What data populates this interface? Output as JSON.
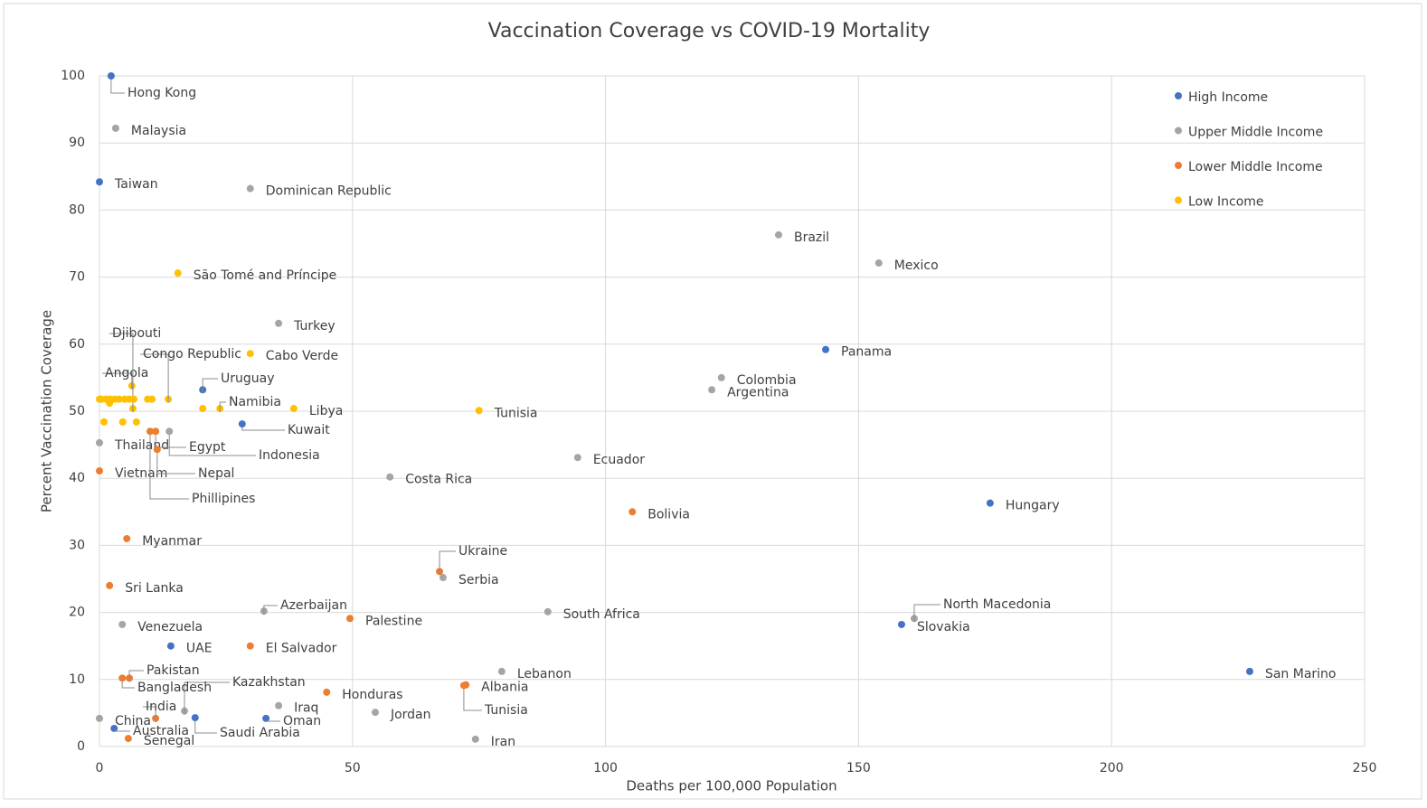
{
  "chart_data": {
    "type": "scatter",
    "title": "Vaccination Coverage vs COVID-19 Mortality",
    "x_label": "Deaths per 100,000 Population",
    "y_label": "Percent Vaccination Coverage",
    "xlim": [
      0,
      250
    ],
    "xticks": [
      0,
      50,
      100,
      150,
      200,
      250
    ],
    "ylim": [
      0,
      100
    ],
    "yticks": [
      0,
      10,
      20,
      30,
      40,
      50,
      60,
      70,
      80,
      90,
      100
    ],
    "grid": true,
    "legend": "upper right",
    "series": [
      {
        "name": "High Income",
        "color": "#4472c4",
        "x": [
          2.3,
          0,
          20.4,
          28.2,
          143.5,
          176,
          158.5,
          227.3,
          14.1,
          18.9,
          2.9,
          32.9
        ],
        "values": [
          100,
          84.2,
          53.2,
          48.1,
          59.2,
          36.3,
          18.2,
          11.2,
          15.0,
          4.3,
          2.7,
          4.2
        ],
        "labels": [
          "Hong Kong",
          "Taiwan",
          "Uruguay",
          "Kuwait",
          "Panama",
          "Hungary",
          "Slovakia",
          "San Marino",
          "UAE",
          "Saudi Arabia",
          "Australia",
          "Oman"
        ]
      },
      {
        "name": "Upper Middle Income",
        "color": "#a5a5a5",
        "x": [
          3.2,
          29.8,
          134.2,
          154,
          35.4,
          122.9,
          121,
          0,
          13.8,
          94.5,
          57.4,
          67.9,
          88.6,
          32.5,
          161,
          4.5,
          79.5,
          16.8,
          35.4,
          54.5,
          74.3,
          0
        ],
        "values": [
          92.2,
          83.2,
          76.3,
          72.1,
          63.1,
          55.0,
          53.2,
          45.3,
          47.0,
          43.1,
          40.2,
          25.2,
          20.1,
          20.2,
          19.1,
          18.2,
          11.2,
          5.3,
          6.1,
          5.1,
          1.1,
          4.2
        ],
        "labels": [
          "Malaysia",
          "Dominican Republic",
          "Brazil",
          "Mexico",
          "Turkey",
          "Colombia",
          "Argentina",
          "Thailand",
          "Indonesia",
          "Ecuador",
          "Costa Rica",
          "Serbia",
          "South Africa",
          "Azerbaijan",
          "North Macedonia",
          "Venezuela",
          "Lebanon",
          "Kazakhstan",
          "Iraq",
          "Jordan",
          "Iran",
          "China"
        ]
      },
      {
        "name": "Lower Middle Income",
        "color": "#ed7d31",
        "x": [
          0,
          10,
          11.1,
          11.4,
          5.4,
          2,
          105.3,
          67.2,
          49.5,
          29.8,
          4.5,
          5.9,
          44.9,
          72.4,
          72,
          11.1,
          5.7
        ],
        "values": [
          41.1,
          47.0,
          47.0,
          44.3,
          31,
          24,
          35.0,
          26.1,
          19.1,
          15.0,
          10.2,
          10.2,
          8.1,
          9.2,
          9.1,
          4.2,
          1.2
        ],
        "labels": [
          "Vietnam",
          "Phillipines",
          "Egypt",
          "Nepal",
          "Myanmar",
          "Sri Lanka",
          "Bolivia",
          "Ukraine",
          "Palestine",
          "El Salvador",
          "Bangladesh",
          "Pakistan",
          "Honduras",
          "Albania",
          "Tunisia",
          "India",
          "Senegal"
        ]
      },
      {
        "name": "Low Income",
        "color": "#ffc000",
        "x": [
          15.5,
          29.8,
          75,
          38.4,
          23.8,
          20.4,
          13.6,
          6.4,
          6.6,
          0,
          0.4,
          1.3,
          2.1,
          3,
          3.9,
          5,
          5.9,
          6.8,
          2,
          9.5,
          10.4,
          0.9,
          4.6,
          7.3
        ],
        "values": [
          70.6,
          58.6,
          50.1,
          50.4,
          50.4,
          50.4,
          51.8,
          53.8,
          50.4,
          51.8,
          51.8,
          51.8,
          51.8,
          51.8,
          51.8,
          51.8,
          51.8,
          51.8,
          51.2,
          51.8,
          51.8,
          48.4,
          48.4,
          48.4
        ],
        "labels": [
          "São Tomé and Príncipe",
          "Cabo Verde",
          "Tunisia",
          "Libya",
          "Namibia",
          null,
          "Congo Republic",
          "Angola",
          "Djibouti",
          null,
          null,
          null,
          null,
          null,
          null,
          null,
          null,
          null,
          null,
          null,
          null,
          null,
          null,
          null
        ]
      }
    ]
  }
}
